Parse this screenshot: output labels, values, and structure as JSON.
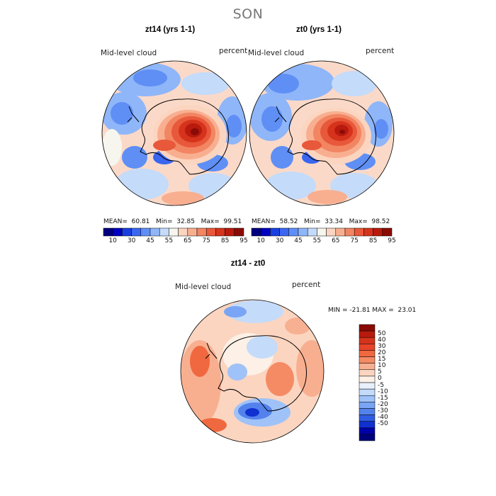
{
  "figure_title": "SON",
  "panels": [
    {
      "title": "zt14 (yrs 1-1)",
      "variable": "Mid-level cloud",
      "units": "percent",
      "stats": {
        "mean_label": "MEAN=",
        "mean": "60.81",
        "min_label": "Min=",
        "min": "32.85",
        "max_label": "Max=",
        "max": "99.51"
      },
      "colorbar": {
        "colors": [
          "#00007f",
          "#0000c0",
          "#1a3fe0",
          "#3a66f0",
          "#5f8ff5",
          "#8fb6f8",
          "#c4dbfa",
          "#f6f6ee",
          "#fbd5c0",
          "#f8af90",
          "#f28562",
          "#e8583a",
          "#d6331c",
          "#b81a0e",
          "#8a0b05"
        ],
        "tick_labels": [
          "10",
          "30",
          "45",
          "55",
          "65",
          "75",
          "85",
          "95"
        ]
      }
    },
    {
      "title": "zt0 (yrs 1-1)",
      "variable": "Mid-level cloud",
      "units": "percent",
      "stats": {
        "mean_label": "MEAN=",
        "mean": "58.52",
        "min_label": "Min=",
        "min": "33.34",
        "max_label": "Max=",
        "max": "98.52"
      },
      "colorbar": {
        "colors": [
          "#00007f",
          "#0000c0",
          "#1a3fe0",
          "#3a66f0",
          "#5f8ff5",
          "#8fb6f8",
          "#c4dbfa",
          "#f6f6ee",
          "#fbd5c0",
          "#f8af90",
          "#f28562",
          "#e8583a",
          "#d6331c",
          "#b81a0e",
          "#8a0b05"
        ],
        "tick_labels": [
          "10",
          "30",
          "45",
          "55",
          "65",
          "75",
          "85",
          "95"
        ]
      }
    }
  ],
  "difference": {
    "title": "zt14 - zt0",
    "variable": "Mid-level cloud",
    "units": "percent",
    "range_text": "MIN = -21.81 MAX =  23.01",
    "colorbar": {
      "colors": [
        "#8a0b05",
        "#b81a0e",
        "#d6331c",
        "#e8442a",
        "#f0683f",
        "#f48b64",
        "#f7b092",
        "#fbd5c0",
        "#fdf0e6",
        "#e8f0fb",
        "#c4dbfa",
        "#9fc2f8",
        "#7aa4f4",
        "#5482ec",
        "#2f5de2",
        "#1030d0",
        "#0000a8",
        "#00007a"
      ],
      "tick_labels": [
        "50",
        "40",
        "30",
        "20",
        "15",
        "10",
        "5",
        "0",
        "-5",
        "-10",
        "-15",
        "-20",
        "-30",
        "-40",
        "-50"
      ]
    }
  }
}
